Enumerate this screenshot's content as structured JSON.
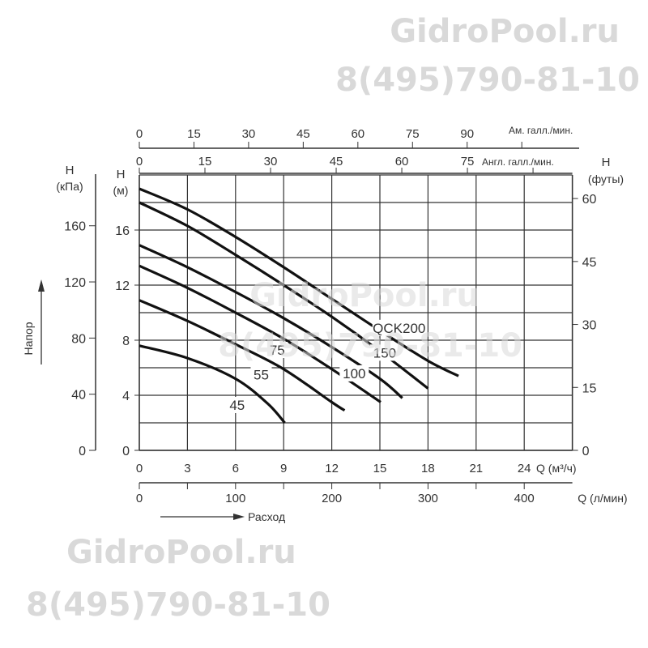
{
  "watermarks": [
    {
      "site": "GidroPool.ru",
      "phone": "8(495)790-81-10"
    }
  ],
  "chart_data": {
    "type": "line",
    "title": "",
    "x_primary": {
      "label": "Q (м³/ч)",
      "range": [
        0,
        27
      ],
      "ticks": [
        0,
        3,
        6,
        9,
        12,
        15,
        18,
        21,
        24
      ]
    },
    "x_lpm": {
      "label": "Q (л/мин)",
      "ticks": [
        0,
        100,
        200,
        300,
        400
      ],
      "minor_step": 50
    },
    "x_us_gpm": {
      "label": "Ам. галл./мин.",
      "ticks": [
        0,
        15,
        30,
        45,
        60,
        75,
        90,
        105
      ],
      "labeled": [
        0,
        15,
        30,
        45,
        60,
        75,
        90
      ]
    },
    "x_uk_gpm": {
      "label": "Англ. галл./мин.",
      "ticks": [
        0,
        15,
        30,
        45,
        60,
        75,
        90
      ],
      "labeled": [
        0,
        15,
        30,
        45,
        60,
        75
      ]
    },
    "y_primary": {
      "label_line1": "H",
      "label_line2": "(м)",
      "range": [
        0,
        20
      ],
      "ticks": [
        0,
        4,
        8,
        12,
        16
      ],
      "grid_step": 2
    },
    "y_kpa": {
      "label_line1": "H",
      "label_line2": "(кПа)",
      "ticks": [
        0,
        40,
        80,
        120,
        160
      ]
    },
    "y_feet": {
      "label_line1": "H",
      "label_line2": "(футы)",
      "ticks": [
        0,
        15,
        30,
        45,
        60
      ]
    },
    "y_axis_title": "Напор",
    "x_axis_title": "Расход",
    "grid": true,
    "series": [
      {
        "name": "QCK200",
        "label_at": [
          16.2,
          8.6
        ],
        "points": [
          [
            0,
            19.0
          ],
          [
            3,
            17.5
          ],
          [
            6,
            15.5
          ],
          [
            9,
            13.3
          ],
          [
            12,
            11.0
          ],
          [
            15,
            8.7
          ],
          [
            18,
            6.5
          ],
          [
            19.9,
            5.4
          ]
        ]
      },
      {
        "name": "150",
        "label_at": [
          15.3,
          6.8
        ],
        "points": [
          [
            0,
            18.0
          ],
          [
            3,
            16.3
          ],
          [
            6,
            14.2
          ],
          [
            9,
            12.0
          ],
          [
            12,
            9.7
          ],
          [
            15,
            7.2
          ],
          [
            18,
            4.5
          ]
        ]
      },
      {
        "name": "100",
        "label_at": [
          13.4,
          5.3
        ],
        "points": [
          [
            0,
            14.9
          ],
          [
            3,
            13.3
          ],
          [
            6,
            11.5
          ],
          [
            9,
            9.6
          ],
          [
            12,
            7.5
          ],
          [
            15,
            5.2
          ],
          [
            16.4,
            3.8
          ]
        ]
      },
      {
        "name": "75",
        "label_at": [
          8.6,
          7.0
        ],
        "points": [
          [
            0,
            13.4
          ],
          [
            3,
            11.8
          ],
          [
            6,
            10.0
          ],
          [
            9,
            8.1
          ],
          [
            12,
            5.9
          ],
          [
            15.05,
            3.5
          ]
        ]
      },
      {
        "name": "55",
        "label_at": [
          7.6,
          5.2
        ],
        "points": [
          [
            0,
            10.9
          ],
          [
            3,
            9.4
          ],
          [
            6,
            7.7
          ],
          [
            9,
            5.9
          ],
          [
            12,
            3.5
          ],
          [
            12.8,
            2.9
          ]
        ]
      },
      {
        "name": "45",
        "label_at": [
          6.1,
          3.0
        ],
        "points": [
          [
            0,
            7.6
          ],
          [
            3,
            6.7
          ],
          [
            6,
            5.2
          ],
          [
            8,
            3.4
          ],
          [
            9.07,
            2.0
          ]
        ]
      }
    ]
  }
}
